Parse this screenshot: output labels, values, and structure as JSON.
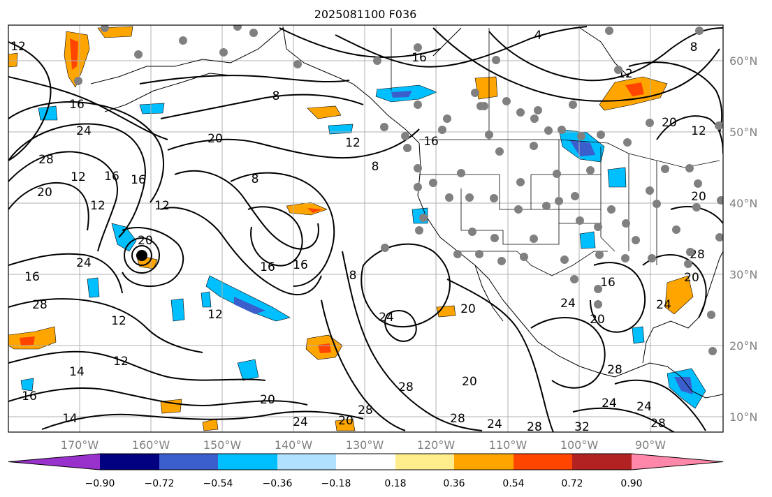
{
  "title": "2025081100 F036",
  "longitude_labels": [
    "170°W",
    "160°W",
    "150°W",
    "140°W",
    "130°W",
    "120°W",
    "110°W",
    "100°W",
    "90°W"
  ],
  "latitude_labels": [
    "60°N",
    "50°N",
    "40°N",
    "30°N",
    "20°N",
    "10°N"
  ],
  "colorbar": {
    "colors": [
      "#9932cc",
      "#000080",
      "#3a5fcd",
      "#00bfff",
      "#b0e2ff",
      "#ffffff",
      "#ffec8b",
      "#ffa500",
      "#ff4500",
      "#b22222",
      "#ff88aa"
    ],
    "tick_labels": [
      "−0.90",
      "−0.72",
      "−0.54",
      "−0.36",
      "−0.18",
      "0.18",
      "0.36",
      "0.54",
      "0.72",
      "0.90"
    ]
  },
  "contour_labels": [
    "12",
    "16",
    "24",
    "28",
    "20",
    "16",
    "12",
    "8",
    "16",
    "20",
    "4",
    "8",
    "12",
    "20",
    "16",
    "12",
    "8",
    "12",
    "8",
    "16",
    "16",
    "12",
    "20",
    "24",
    "16",
    "28",
    "12",
    "16",
    "24",
    "12",
    "14",
    "16",
    "12",
    "20",
    "20",
    "24",
    "28",
    "20",
    "24",
    "20",
    "28",
    "24",
    "28",
    "24",
    "28",
    "32",
    "28",
    "24",
    "28",
    "20",
    "16",
    "28",
    "20",
    "12",
    "20",
    "8",
    "24",
    "14"
  ],
  "colors": {
    "contour": "#000000",
    "grid": "#b0b0b0",
    "station_dots": "#808080",
    "orange_fill": "#ffa500",
    "blue_fill": "#00bfff"
  }
}
